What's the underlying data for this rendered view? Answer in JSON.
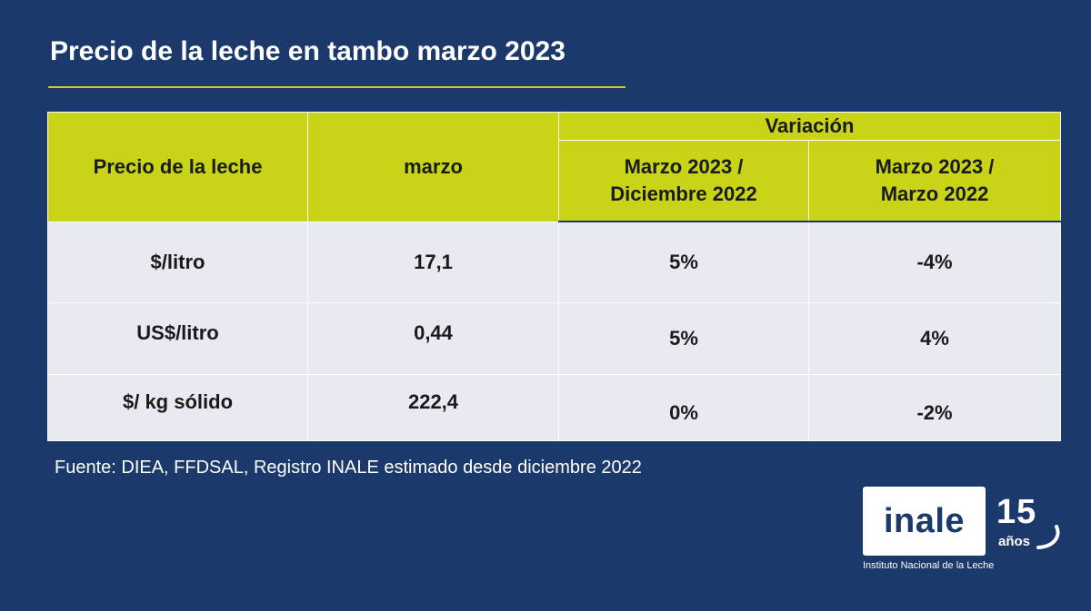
{
  "title": "Precio de la leche en tambo marzo 2023",
  "table": {
    "headers": {
      "col1": "Precio de la leche",
      "col2": "marzo",
      "group": "Variación",
      "sub1_line1": "Marzo 2023 /",
      "sub1_line2": "Diciembre 2022",
      "sub2_line1": "Marzo 2023 /",
      "sub2_line2": "Marzo 2022"
    },
    "rows": [
      {
        "label": "$/litro",
        "value": "17,1",
        "var_dic": "5%",
        "var_mar": "-4%"
      },
      {
        "label": "US$/litro",
        "value": "0,44",
        "var_dic": "5%",
        "var_mar": "4%"
      },
      {
        "label": "$/ kg sólido",
        "value": "222,4",
        "var_dic": "0%",
        "var_mar": "-2%"
      }
    ]
  },
  "source": "Fuente: DIEA, FFDSAL, Registro INALE estimado desde diciembre 2022",
  "logo": {
    "word": "inale",
    "anniversary_number": "15",
    "anniversary_label": "años",
    "caption": "Instituto Nacional de la Leche"
  },
  "colors": {
    "background": "#1b3a6b",
    "accent": "#c8d415",
    "row_fill": "#e9e9f1"
  }
}
